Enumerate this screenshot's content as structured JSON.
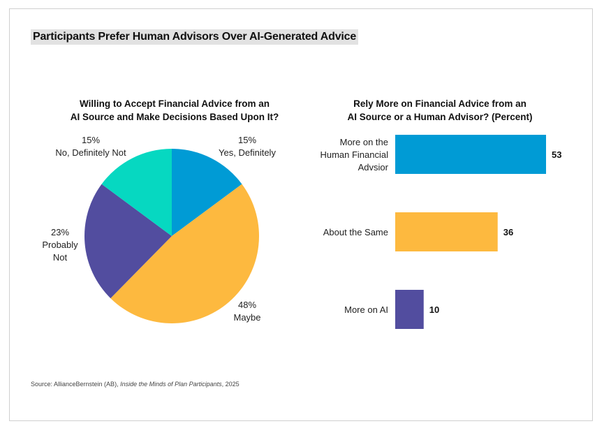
{
  "title": "Participants Prefer Human Advisors Over AI-Generated Advice",
  "source": {
    "prefix": "Source: AllianceBernstein (AB), ",
    "publication": "Inside the Minds of Plan Participants",
    "suffix": ", 2025"
  },
  "colors": {
    "blue": "#009bd5",
    "yellow": "#fdb93f",
    "purple": "#524d9f",
    "teal": "#06d8c1"
  },
  "chart_data": [
    {
      "type": "pie",
      "title_lines": [
        "Willing to Accept Financial Advice from an",
        "AI Source and Make Decisions Based Upon It?"
      ],
      "slices": [
        {
          "label_lines": [
            "15%",
            "Yes, Definitely"
          ],
          "value": 15,
          "color": "#009bd5"
        },
        {
          "label_lines": [
            "48%",
            "Maybe"
          ],
          "value": 48,
          "color": "#fdb93f"
        },
        {
          "label_lines": [
            "23%",
            "Probably",
            "Not"
          ],
          "value": 23,
          "color": "#524d9f"
        },
        {
          "label_lines": [
            "15%",
            "No, Definitely Not"
          ],
          "value": 15,
          "color": "#06d8c1"
        }
      ]
    },
    {
      "type": "bar",
      "orientation": "horizontal",
      "title_lines": [
        "Rely More on Financial Advice from an",
        "AI Source or a Human Advisor? (Percent)"
      ],
      "categories": [
        [
          "More on the",
          "Human Financial",
          "Advsior"
        ],
        [
          "About the Same"
        ],
        [
          "More on AI"
        ]
      ],
      "values": [
        53,
        36,
        10
      ],
      "colors": [
        "#009bd5",
        "#fdb93f",
        "#524d9f"
      ],
      "xlim": [
        0,
        53
      ]
    }
  ]
}
